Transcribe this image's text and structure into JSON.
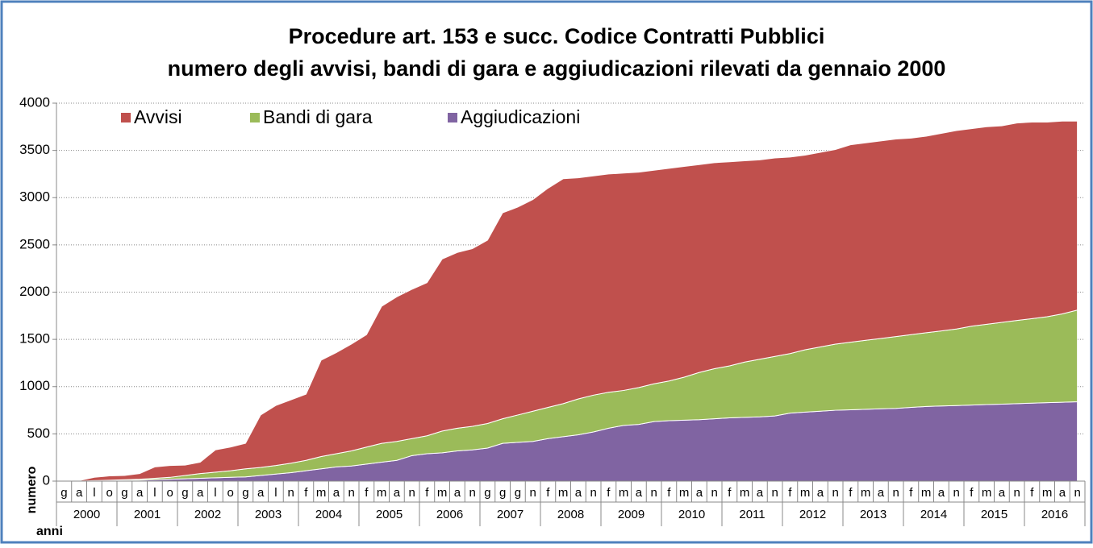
{
  "chart_data": {
    "type": "stacked_area",
    "title": [
      "Procedure art. 153 e succ. Codice Contratti Pubblici",
      "numero degli avvisi, bandi di gara e aggiudicazioni rilevati da gennaio 2000"
    ],
    "ylabel": "numero",
    "xlabel": "anni",
    "years": [
      "2000",
      "2001",
      "2002",
      "2003",
      "2004",
      "2005",
      "2006",
      "2007",
      "2008",
      "2009",
      "2010",
      "2011",
      "2012",
      "2013",
      "2014",
      "2015",
      "2016"
    ],
    "categories": [
      "g",
      "a",
      "l",
      "o",
      "g",
      "a",
      "l",
      "o",
      "g",
      "a",
      "l",
      "o",
      "g",
      "a",
      "l",
      "n",
      "f",
      "m",
      "a",
      "n",
      "f",
      "m",
      "a",
      "n",
      "f",
      "m",
      "a",
      "n",
      "g",
      "g",
      "g",
      "n",
      "f",
      "m",
      "a",
      "n",
      "f",
      "m",
      "a",
      "n",
      "f",
      "m",
      "a",
      "n",
      "f",
      "m",
      "a",
      "n",
      "f",
      "m",
      "a",
      "n",
      "f",
      "m",
      "a",
      "n",
      "f",
      "m",
      "a",
      "n",
      "f",
      "m",
      "a",
      "n",
      "f",
      "m",
      "a",
      "n"
    ],
    "series": [
      {
        "name": "Avvisi",
        "color": "#c0504d",
        "values": [
          0,
          5,
          35,
          45,
          45,
          60,
          120,
          125,
          110,
          120,
          235,
          250,
          270,
          555,
          635,
          670,
          700,
          1020,
          1070,
          1130,
          1190,
          1450,
          1530,
          1580,
          1620,
          1820,
          1860,
          1880,
          1940,
          2180,
          2200,
          2240,
          2320,
          2380,
          2340,
          2320,
          2310,
          2300,
          2280,
          2260,
          2250,
          2230,
          2200,
          2180,
          2160,
          2130,
          2110,
          2100,
          2080,
          2060,
          2060,
          2060,
          2090,
          2090,
          2090,
          2090,
          2080,
          2080,
          2090,
          2100,
          2090,
          2090,
          2080,
          2090,
          2080,
          2060,
          2040,
          2000
        ]
      },
      {
        "name": "Bandi di gara",
        "color": "#9bbb59",
        "values": [
          0,
          0,
          5,
          5,
          10,
          10,
          15,
          20,
          35,
          50,
          60,
          70,
          85,
          85,
          90,
          100,
          110,
          130,
          140,
          160,
          180,
          200,
          200,
          180,
          190,
          230,
          240,
          250,
          260,
          260,
          290,
          320,
          330,
          350,
          380,
          390,
          380,
          370,
          390,
          400,
          420,
          455,
          500,
          530,
          550,
          585,
          610,
          630,
          630,
          660,
          680,
          700,
          715,
          730,
          745,
          760,
          770,
          780,
          795,
          810,
          835,
          850,
          865,
          880,
          895,
          910,
          935,
          970
        ]
      },
      {
        "name": "Aggiudicazioni",
        "color": "#8064a2",
        "values": [
          0,
          0,
          0,
          5,
          5,
          10,
          15,
          20,
          25,
          30,
          35,
          40,
          45,
          60,
          75,
          90,
          110,
          130,
          150,
          160,
          180,
          200,
          220,
          270,
          290,
          300,
          320,
          330,
          350,
          400,
          410,
          420,
          450,
          470,
          490,
          520,
          560,
          590,
          600,
          630,
          640,
          645,
          650,
          660,
          670,
          675,
          680,
          690,
          720,
          730,
          740,
          750,
          755,
          760,
          765,
          770,
          780,
          790,
          795,
          800,
          805,
          810,
          815,
          820,
          825,
          830,
          835,
          840
        ]
      }
    ],
    "ylim": [
      0,
      4000
    ],
    "yticks": [
      0,
      500,
      1000,
      1500,
      2000,
      2500,
      3000,
      3500,
      4000
    ],
    "grid": true,
    "legend": "top-left"
  }
}
